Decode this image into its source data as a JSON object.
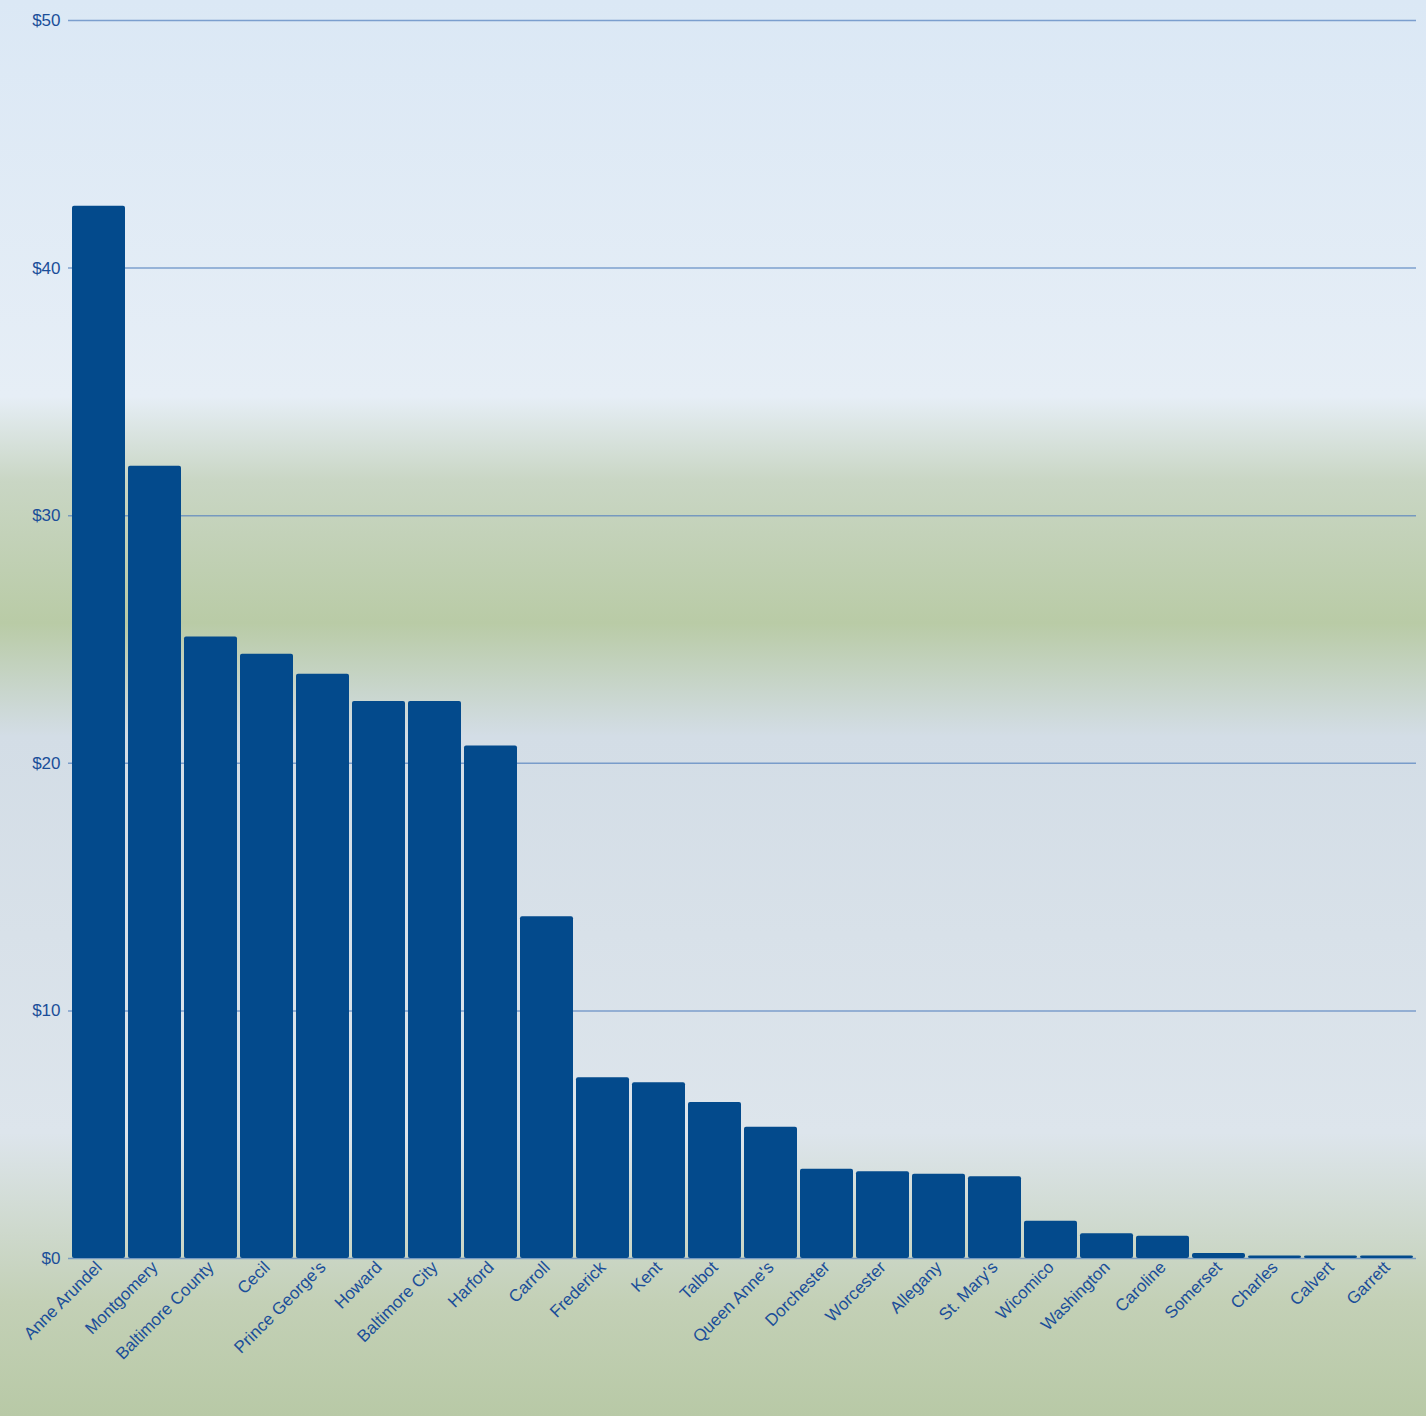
{
  "chart_data": {
    "type": "bar",
    "categories": [
      "Anne Arundel",
      "Montgomery",
      "Baltimore County",
      "Cecil",
      "Prince George's",
      "Howard",
      "Baltimore City",
      "Harford",
      "Carroll",
      "Frederick",
      "Kent",
      "Talbot",
      "Queen Anne's",
      "Dorchester",
      "Worcester",
      "Allegany",
      "St. Mary's",
      "Wicomico",
      "Washington",
      "Caroline",
      "Somerset",
      "Charles",
      "Calvert",
      "Garrett"
    ],
    "values": [
      42.5,
      32.0,
      25.1,
      24.4,
      23.6,
      22.5,
      22.5,
      20.7,
      13.8,
      7.3,
      7.1,
      6.3,
      5.3,
      3.6,
      3.5,
      3.4,
      3.3,
      1.5,
      1.0,
      0.9,
      0.2,
      0.1,
      0.1,
      0.1
    ],
    "color": "#034a8c",
    "ylim": [
      0,
      50
    ],
    "yticks": [
      {
        "value": 0,
        "label": "$0"
      },
      {
        "value": 10,
        "label": "$10"
      },
      {
        "value": 20,
        "label": "$20"
      },
      {
        "value": 30,
        "label": "$30"
      },
      {
        "value": 40,
        "label": "$40"
      },
      {
        "value": 50,
        "label": "$50"
      }
    ],
    "grid": true
  }
}
